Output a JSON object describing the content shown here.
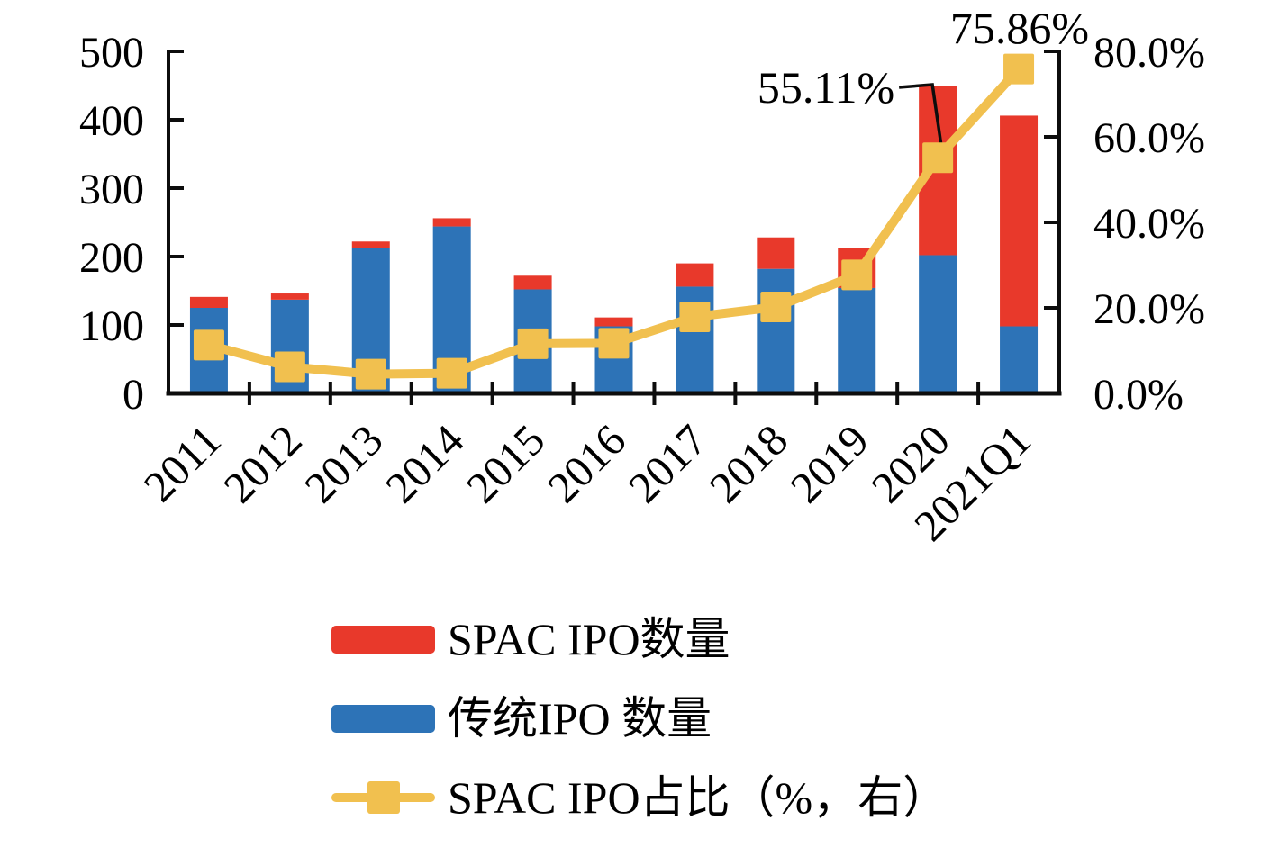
{
  "colors": {
    "spac_red": "#E8392B",
    "traditional_blue": "#2D73B7",
    "share_yellow": "#F1C04F",
    "axis_black": "#0d0d0d",
    "background": "#ffffff"
  },
  "chart_data": {
    "type": "combo-stacked-bar-line",
    "categories": [
      "2011",
      "2012",
      "2013",
      "2014",
      "2015",
      "2016",
      "2017",
      "2018",
      "2019",
      "2020",
      "2021Q1"
    ],
    "bar_series": [
      {
        "name": "传统IPO 数量",
        "axis": "left",
        "stack_position": "bottom",
        "color": "#2D73B7",
        "values": [
          125,
          137,
          212,
          244,
          152,
          98,
          156,
          182,
          154,
          202,
          98
        ]
      },
      {
        "name": "SPAC IPO数量",
        "axis": "left",
        "stack_position": "top",
        "color": "#E8392B",
        "values": [
          16,
          9,
          10,
          12,
          20,
          13,
          34,
          46,
          59,
          248,
          308
        ]
      }
    ],
    "line_series": {
      "name": "SPAC IPO占比（%，右）",
      "axis": "right",
      "marker": "square",
      "color": "#F1C04F",
      "values_percent": [
        11.3,
        6.2,
        4.5,
        4.7,
        11.6,
        11.7,
        17.9,
        20.2,
        27.7,
        55.11,
        75.86
      ]
    },
    "left_axis": {
      "range": [
        0,
        500
      ],
      "tick_labels": [
        "0",
        "100",
        "200",
        "300",
        "400",
        "500"
      ]
    },
    "right_axis": {
      "range_percent": [
        0,
        80
      ],
      "tick_labels": [
        "0.0%",
        "20.0%",
        "40.0%",
        "60.0%",
        "80.0%"
      ]
    },
    "annotations": [
      {
        "text": "55.11%",
        "target": "2020",
        "has_leader_line": true
      },
      {
        "text": "75.86%",
        "target": "2021Q1",
        "has_leader_line": false
      }
    ],
    "grid": false,
    "legend_position": "bottom-left"
  },
  "legend": {
    "items": [
      {
        "label": "SPAC IPO数量",
        "marker": "red-bar-swatch"
      },
      {
        "label": "传统IPO 数量",
        "marker": "blue-bar-swatch"
      },
      {
        "label": "SPAC IPO占比（%，右）",
        "marker": "yellow-line-square-swatch"
      }
    ]
  }
}
